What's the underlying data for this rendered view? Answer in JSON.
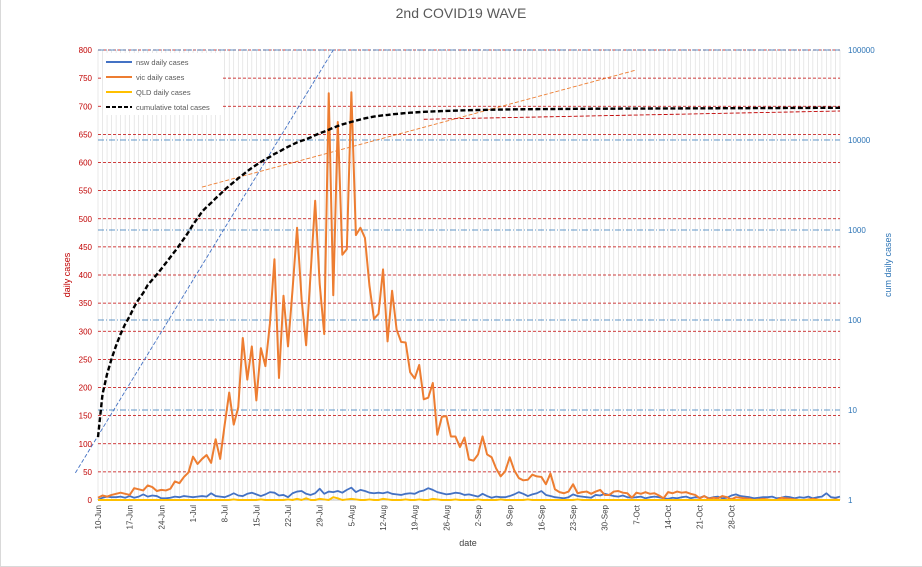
{
  "chart_data": {
    "type": "line",
    "title": "2nd COVID19 WAVE",
    "xlabel": "date",
    "ylabel_left": "daily cases",
    "ylabel_right": "cum daily cases",
    "ylim_left": [
      0,
      800
    ],
    "y_ticks_left": [
      "0",
      "50",
      "100",
      "150",
      "200",
      "250",
      "300",
      "350",
      "400",
      "450",
      "500",
      "550",
      "600",
      "650",
      "700",
      "750",
      "800"
    ],
    "y_scale_right": "log",
    "ylim_right": [
      1,
      100000
    ],
    "y_ticks_right": [
      "1",
      "10",
      "100",
      "1000",
      "10000",
      "100000"
    ],
    "x_start_label": "10-Jun",
    "x_tick_labels": [
      "10-Jun",
      "17-Jun",
      "24-Jun",
      "1-Jul",
      "8-Jul",
      "15-Jul",
      "22-Jul",
      "29-Jul",
      "5-Aug",
      "12-Aug",
      "19-Aug",
      "26-Aug",
      "2-Sep",
      "9-Sep",
      "16-Sep",
      "23-Sep",
      "30-Sep",
      "7-Oct",
      "14-Oct",
      "21-Oct",
      "28-Oct"
    ],
    "legend_position": "top-left",
    "grid": "on",
    "colors": {
      "nsw": "#4472c4",
      "vic": "#ed7d31",
      "qld": "#ffc000",
      "cumulative": "#000000",
      "left_axis": "#c00000",
      "right_axis": "#2e75b6",
      "gridline_red": "#c00000",
      "gridline_blue": "#2e75b6"
    },
    "series": [
      {
        "name": "nsw daily cases",
        "axis": "left",
        "values": [
          0,
          4,
          6,
          5,
          5,
          6,
          4,
          7,
          4,
          6,
          10,
          6,
          8,
          7,
          3,
          3,
          4,
          6,
          5,
          7,
          6,
          5,
          6,
          7,
          6,
          12,
          7,
          6,
          5,
          8,
          12,
          8,
          7,
          11,
          13,
          10,
          7,
          10,
          14,
          13,
          8,
          9,
          5,
          12,
          15,
          16,
          11,
          9,
          12,
          20,
          11,
          15,
          14,
          16,
          13,
          18,
          22,
          14,
          18,
          16,
          13,
          12,
          13,
          12,
          14,
          11,
          10,
          9,
          11,
          12,
          11,
          15,
          17,
          21,
          18,
          14,
          12,
          10,
          11,
          13,
          12,
          9,
          10,
          8,
          6,
          11,
          7,
          4,
          6,
          5,
          5,
          7,
          10,
          14,
          11,
          7,
          10,
          12,
          16,
          9,
          7,
          5,
          4,
          3,
          5,
          10,
          7,
          6,
          5,
          4,
          9,
          8,
          11,
          9,
          7,
          6,
          8,
          5,
          4,
          5,
          6,
          3,
          5,
          6,
          5,
          3,
          2,
          4,
          3,
          5,
          6,
          3,
          5,
          4,
          7,
          3,
          5,
          6,
          3,
          4,
          8,
          10,
          7,
          6,
          5,
          3,
          4,
          5,
          5,
          6,
          3,
          4,
          6,
          5,
          3,
          5,
          4,
          6,
          3,
          5,
          6,
          12,
          5,
          4,
          6
        ]
      },
      {
        "name": "vic daily cases",
        "axis": "left",
        "values": [
          4,
          8,
          6,
          9,
          11,
          13,
          11,
          9,
          21,
          19,
          17,
          26,
          23,
          16,
          18,
          17,
          20,
          33,
          30,
          41,
          49,
          77,
          64,
          73,
          80,
          66,
          108,
          73,
          134,
          191,
          134,
          165,
          288,
          214,
          273,
          177,
          270,
          238,
          314,
          428,
          217,
          363,
          273,
          374,
          484,
          357,
          275,
          404,
          532,
          384,
          295,
          723,
          364,
          672,
          436,
          446,
          725,
          471,
          484,
          466,
          381,
          322,
          331,
          410,
          282,
          372,
          303,
          281,
          280,
          227,
          216,
          240,
          179,
          182,
          208,
          116,
          148,
          149,
          113,
          113,
          94,
          111,
          72,
          70,
          81,
          113,
          81,
          76,
          56,
          42,
          51,
          76,
          53,
          39,
          35,
          36,
          45,
          42,
          41,
          28,
          47,
          19,
          14,
          12,
          15,
          28,
          12,
          14,
          15,
          11,
          15,
          18,
          9,
          9,
          15,
          16,
          13,
          12,
          4,
          13,
          11,
          14,
          11,
          12,
          8,
          3,
          14,
          12,
          15,
          13,
          14,
          11,
          9,
          3,
          7,
          2,
          4,
          3,
          7,
          5,
          1,
          5,
          4,
          3,
          2,
          0,
          1,
          2,
          1,
          0,
          0,
          4,
          3,
          2,
          1,
          0,
          0,
          1,
          2,
          1,
          0,
          0,
          0,
          1,
          0
        ]
      },
      {
        "name": "QLD daily cases",
        "axis": "left",
        "values": [
          0,
          0,
          0,
          0,
          0,
          0,
          0,
          0,
          0,
          0,
          0,
          0,
          0,
          0,
          0,
          0,
          0,
          0,
          0,
          0,
          0,
          0,
          0,
          0,
          0,
          0,
          0,
          0,
          0,
          0,
          1,
          0,
          0,
          0,
          0,
          0,
          1,
          0,
          0,
          0,
          0,
          0,
          1,
          0,
          2,
          0,
          3,
          0,
          0,
          2,
          1,
          0,
          5,
          3,
          0,
          1,
          2,
          1,
          0,
          0,
          1,
          0,
          0,
          2,
          1,
          0,
          0,
          0,
          1,
          0,
          0,
          1,
          0,
          0,
          2,
          1,
          0,
          0,
          0,
          1,
          0,
          0,
          0,
          0,
          1,
          0,
          0,
          0,
          0,
          1,
          0,
          0,
          0,
          0,
          0,
          1,
          0,
          0,
          0,
          0,
          0,
          0,
          0,
          0,
          0,
          0,
          1,
          0,
          0,
          0,
          0,
          0,
          0,
          0,
          0,
          0,
          0,
          0,
          0,
          0,
          0,
          0,
          0,
          0,
          0,
          0,
          0,
          0,
          0,
          0,
          0,
          0,
          0,
          0,
          0,
          0,
          0,
          0,
          0,
          0,
          0,
          0,
          0,
          0,
          0,
          0,
          0,
          0,
          0,
          0,
          0,
          0,
          0,
          0,
          0,
          0,
          0,
          0,
          0,
          0,
          0,
          0,
          0,
          0,
          0
        ]
      },
      {
        "name": "cumulative total cases",
        "axis": "right",
        "values": [
          5,
          15,
          25,
          37,
          52,
          70,
          90,
          110,
          140,
          170,
          200,
          245,
          280,
          320,
          370,
          430,
          500,
          580,
          680,
          800,
          950,
          1150,
          1350,
          1600,
          1800,
          2000,
          2250,
          2500,
          2800,
          3100,
          3400,
          3750,
          4100,
          4500,
          4900,
          5300,
          5700,
          6100,
          6500,
          7000,
          7400,
          7900,
          8400,
          8900,
          9400,
          9800,
          10200,
          10700,
          11300,
          11900,
          12400,
          13000,
          13700,
          14300,
          14900,
          15400,
          15900,
          16400,
          16900,
          17400,
          17800,
          18200,
          18500,
          18800,
          19000,
          19300,
          19500,
          19700,
          19900,
          20100,
          20250,
          20400,
          20550,
          20650,
          20750,
          20850,
          20950,
          21050,
          21130,
          21200,
          21280,
          21350,
          21420,
          21480,
          21540,
          21600,
          21650,
          21700,
          21750,
          21790,
          21830,
          21870,
          21900,
          21930,
          21960,
          21990,
          22010,
          22030,
          22050,
          22070,
          22090,
          22110,
          22130,
          22150,
          22165,
          22180,
          22195,
          22210,
          22225,
          22240,
          22255,
          22270,
          22285,
          22295,
          22305,
          22315,
          22325,
          22335,
          22345,
          22355,
          22365,
          22375,
          22385,
          22395,
          22405,
          22415,
          22425,
          22435,
          22445,
          22455,
          22465,
          22475,
          22485,
          22495,
          22505,
          22515,
          22525,
          22535,
          22545,
          22555,
          22565,
          22575,
          22585,
          22595,
          22605,
          22615,
          22625,
          22635,
          22645,
          22655,
          22665,
          22675,
          22685,
          22695,
          22705,
          22715,
          22725,
          22735,
          22745,
          22755,
          22765,
          22775,
          22785,
          22795,
          22805
        ]
      }
    ],
    "trendlines": [
      {
        "axis": "right",
        "color": "#4472c4",
        "from": [
          -5,
          2
        ],
        "to": [
          52,
          100000
        ]
      },
      {
        "axis": "right",
        "color": "#ed7d31",
        "from": [
          23,
          3000
        ],
        "to": [
          119,
          60000
        ]
      },
      {
        "axis": "right",
        "color": "#c00000",
        "from": [
          72,
          17000
        ],
        "to": [
          164,
          21000
        ]
      }
    ]
  }
}
